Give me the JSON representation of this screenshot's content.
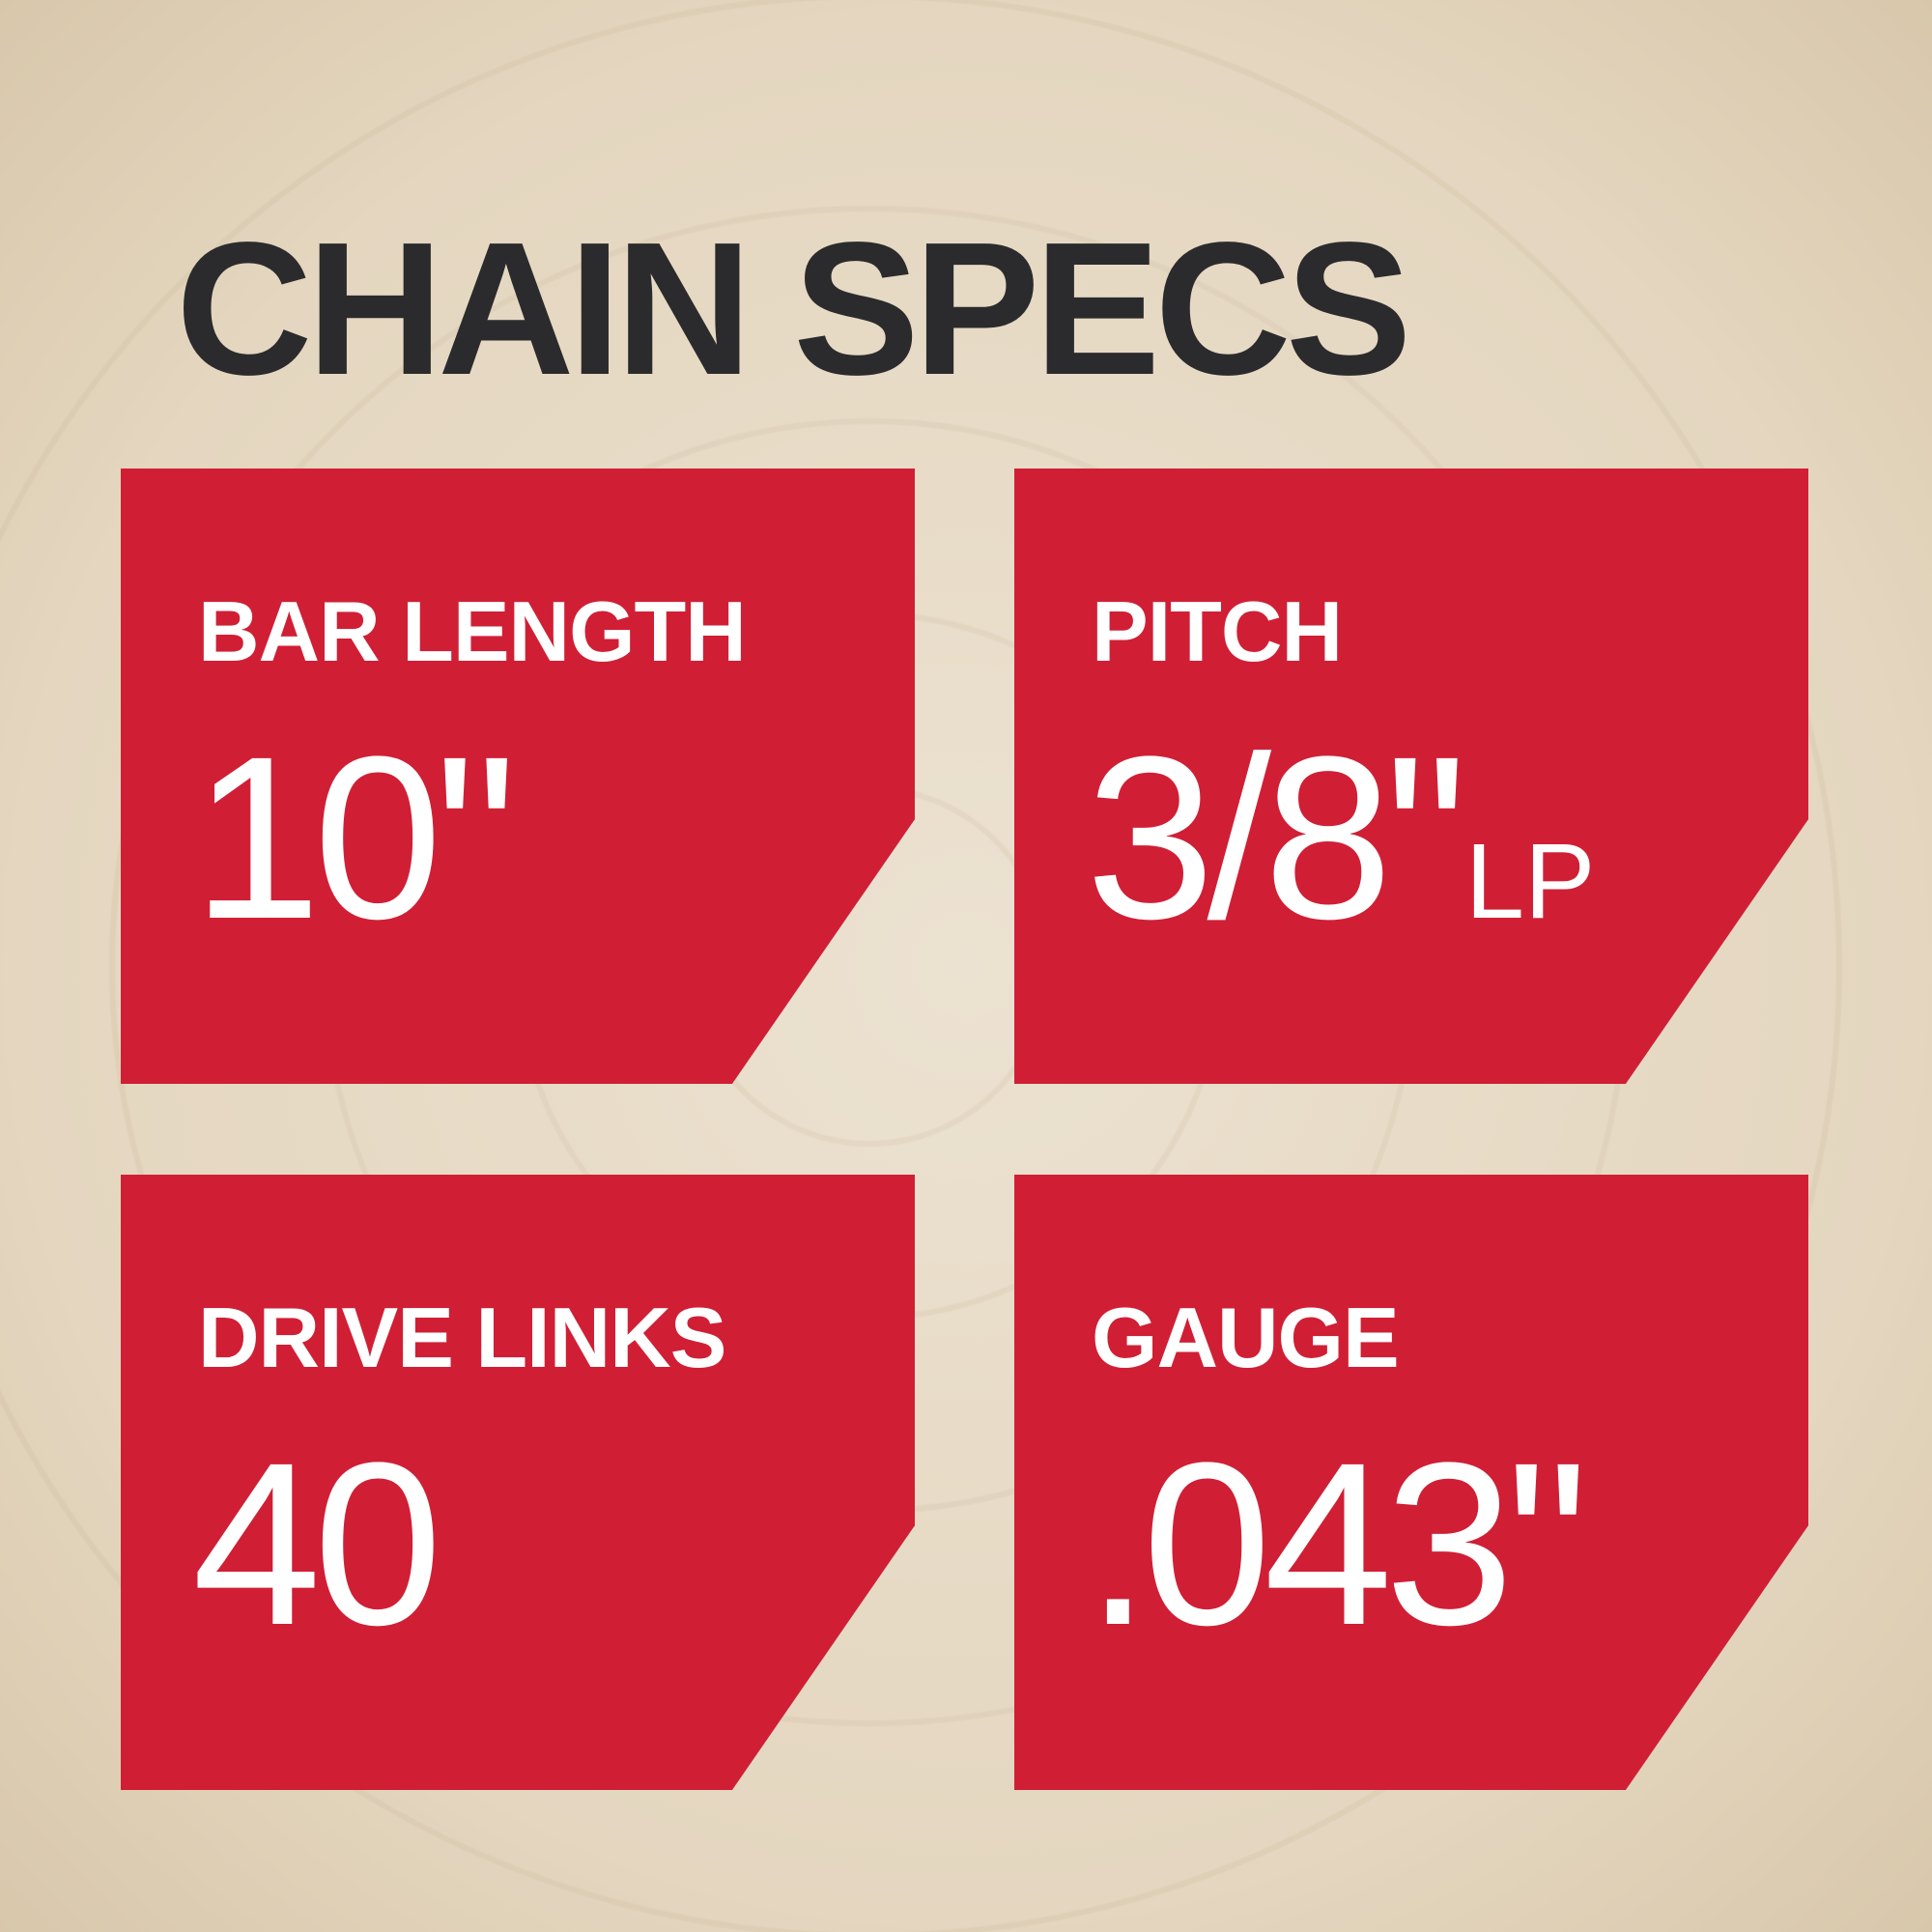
{
  "title": "CHAIN SPECS",
  "colors": {
    "card": "#d01f35",
    "title": "#2b2b2d",
    "text": "#ffffff"
  },
  "specs": [
    {
      "label": "BAR LENGTH",
      "value": "10\"",
      "suffix": ""
    },
    {
      "label": "PITCH",
      "value": "3/8\"",
      "suffix": "LP"
    },
    {
      "label": "DRIVE LINKS",
      "value": "40",
      "suffix": ""
    },
    {
      "label": "GAUGE",
      "value": ".043\"",
      "suffix": ""
    }
  ]
}
